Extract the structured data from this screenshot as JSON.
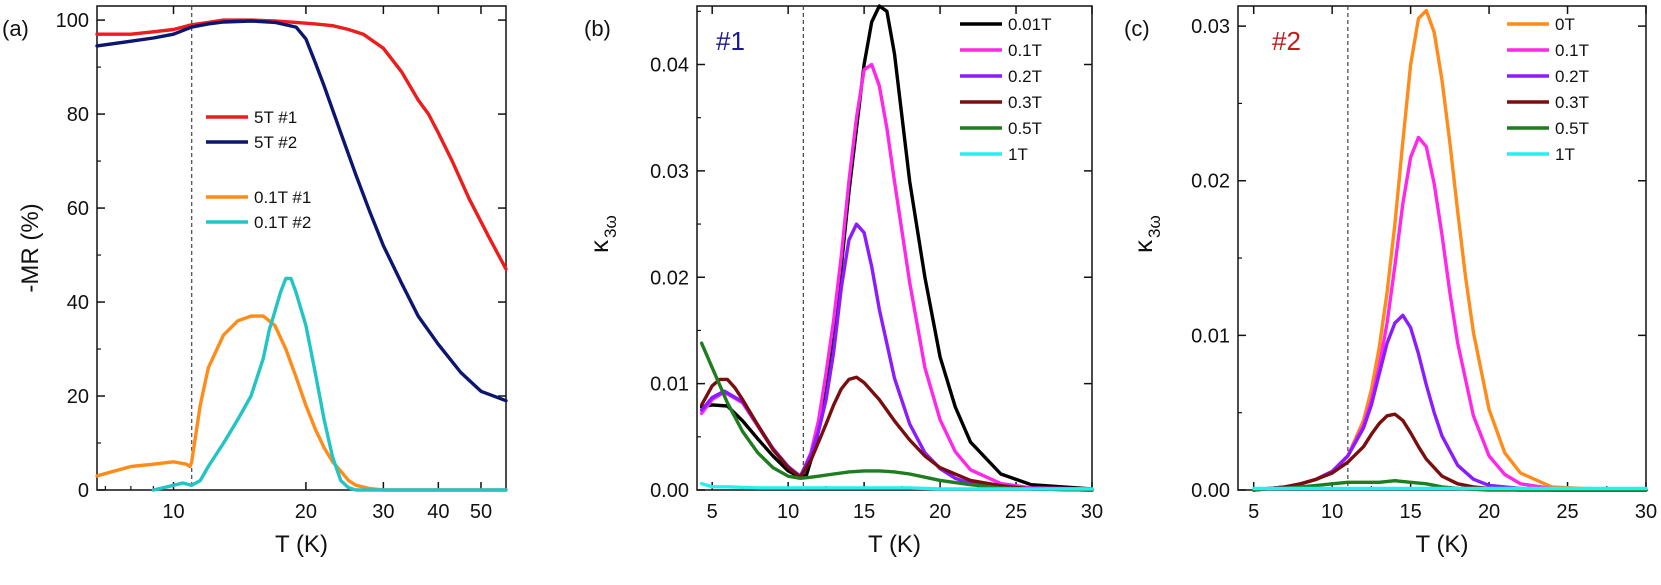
{
  "chart_data": [
    {
      "panel": "(a)",
      "type": "line",
      "xlabel": "T (K)",
      "ylabel": "-MR (%)",
      "xscale": "log",
      "xlim": [
        6.7,
        57
      ],
      "ylim": [
        0,
        103
      ],
      "xticks": [
        "10",
        "20",
        "30",
        "40",
        "50"
      ],
      "yticks": [
        "0",
        "20",
        "40",
        "60",
        "80",
        "100"
      ],
      "vline": 11.0,
      "legend_position": "center-left",
      "series": [
        {
          "name": "5T #1",
          "color": "#ee1c1c",
          "x": [
            6.7,
            8,
            9,
            10,
            11,
            12,
            13,
            15,
            17,
            19,
            21,
            23,
            25,
            27,
            30,
            33,
            36,
            38,
            40,
            43,
            47,
            52,
            57
          ],
          "y": [
            97,
            97,
            97.5,
            98,
            99,
            99.5,
            100,
            100,
            99.8,
            99.5,
            99.2,
            98.8,
            98,
            97,
            94,
            89,
            83,
            80,
            76,
            70,
            62,
            54,
            47
          ]
        },
        {
          "name": "5T #2",
          "color": "#0c1670",
          "x": [
            6.7,
            8,
            9,
            10,
            11,
            12,
            13,
            15,
            17,
            19,
            20,
            21,
            22,
            24,
            26,
            28,
            30,
            33,
            36,
            40,
            45,
            50,
            57
          ],
          "y": [
            94.5,
            95.5,
            96.2,
            97,
            98.5,
            99.2,
            99.6,
            99.8,
            99.5,
            98.5,
            96,
            91,
            86,
            76,
            67,
            59,
            52,
            44,
            37,
            31,
            25,
            21,
            19
          ]
        },
        {
          "name": "0.1T #1",
          "color": "#ff8c1a",
          "x": [
            6.7,
            8,
            9,
            10,
            10.7,
            10.9,
            11.0,
            11.5,
            12,
            13,
            14,
            15,
            16,
            17,
            18,
            19,
            20,
            21,
            22,
            23,
            24,
            25,
            26,
            28,
            30,
            35,
            40,
            57
          ],
          "y": [
            3,
            5,
            5.5,
            6,
            5.5,
            5,
            6,
            18,
            26,
            33,
            36,
            37,
            37,
            35,
            30,
            24,
            18,
            13,
            9,
            6,
            4,
            2,
            1,
            0.3,
            0,
            0,
            0,
            0
          ]
        },
        {
          "name": "0.1T #2",
          "color": "#22c4c4",
          "x": [
            9,
            9.5,
            10,
            10.5,
            11,
            11.5,
            12,
            13,
            14,
            15,
            16,
            16.5,
            17,
            17.5,
            18,
            18.5,
            19,
            20,
            21,
            22,
            23,
            24,
            25,
            26,
            30,
            40,
            57
          ],
          "y": [
            0,
            0.5,
            1,
            1.5,
            1,
            2,
            5,
            10,
            15,
            20,
            28,
            34,
            38,
            42,
            45,
            45,
            42,
            35,
            25,
            15,
            7,
            2,
            0.5,
            0,
            0,
            0,
            0
          ]
        }
      ]
    },
    {
      "panel": "(b)",
      "tag": "#1",
      "tag_color": "#1a1a8f",
      "type": "line",
      "xlabel": "T (K)",
      "ylabel": "κ",
      "ylabel_sub": "3ω",
      "xlim": [
        4,
        30
      ],
      "ylim": [
        0,
        0.0455
      ],
      "xticks": [
        "5",
        "10",
        "15",
        "20",
        "25",
        "30"
      ],
      "yticks": [
        "0.00",
        "0.01",
        "0.02",
        "0.03",
        "0.04"
      ],
      "vline": 11.0,
      "legend_position": "top-right",
      "series": [
        {
          "name": "0.01T",
          "color": "#000000",
          "x": [
            4.3,
            5,
            6,
            7,
            8,
            9,
            10,
            10.8,
            11.2,
            11.8,
            12.5,
            13,
            13.5,
            14,
            14.5,
            15,
            15.5,
            16,
            16.5,
            17,
            17.5,
            18,
            19,
            20,
            21,
            22,
            24,
            26,
            30
          ],
          "y": [
            0.0078,
            0.008,
            0.0079,
            0.0065,
            0.0048,
            0.0032,
            0.0018,
            0.0012,
            0.0014,
            0.0042,
            0.0095,
            0.015,
            0.021,
            0.028,
            0.034,
            0.04,
            0.044,
            0.0455,
            0.045,
            0.041,
            0.035,
            0.029,
            0.02,
            0.0125,
            0.0078,
            0.0045,
            0.0015,
            0.0005,
            0.0001
          ]
        },
        {
          "name": "0.1T",
          "color": "#ff27e8",
          "x": [
            4.3,
            5,
            5.8,
            7,
            8,
            9,
            10,
            10.8,
            11.5,
            12,
            12.5,
            13,
            13.5,
            14,
            14.5,
            15,
            15.5,
            16,
            16.5,
            17,
            18,
            19,
            20,
            21,
            22,
            24,
            26,
            30
          ],
          "y": [
            0.0072,
            0.0085,
            0.0092,
            0.0082,
            0.006,
            0.0038,
            0.0022,
            0.0012,
            0.0035,
            0.0065,
            0.011,
            0.016,
            0.022,
            0.029,
            0.035,
            0.0395,
            0.04,
            0.038,
            0.034,
            0.029,
            0.0195,
            0.0115,
            0.0066,
            0.0036,
            0.0019,
            0.0006,
            0.0002,
            0.0001
          ]
        },
        {
          "name": "0.2T",
          "color": "#8a1cff",
          "x": [
            4.3,
            5,
            5.8,
            7,
            8,
            9,
            10,
            10.8,
            11.5,
            12,
            12.5,
            13,
            13.5,
            14,
            14.5,
            15,
            15.5,
            16,
            17,
            18,
            19,
            20,
            21,
            22,
            24,
            26,
            30
          ],
          "y": [
            0.0075,
            0.0087,
            0.0093,
            0.0083,
            0.0061,
            0.0039,
            0.0022,
            0.0013,
            0.0033,
            0.0055,
            0.0085,
            0.013,
            0.019,
            0.0235,
            0.025,
            0.0242,
            0.021,
            0.017,
            0.0105,
            0.0062,
            0.0035,
            0.002,
            0.0011,
            0.0006,
            0.0002,
            0.0001,
            0.0
          ]
        },
        {
          "name": "0.3T",
          "color": "#7a0e0e",
          "x": [
            4.3,
            5,
            5.5,
            6,
            6.5,
            7,
            8,
            9,
            10,
            10.8,
            11.5,
            12,
            12.5,
            13,
            13.5,
            14,
            14.5,
            15,
            16,
            17,
            18,
            19,
            20,
            22,
            24,
            26,
            30
          ],
          "y": [
            0.008,
            0.0098,
            0.0104,
            0.0104,
            0.0096,
            0.0085,
            0.0061,
            0.0038,
            0.0021,
            0.0012,
            0.0028,
            0.0045,
            0.0062,
            0.008,
            0.0095,
            0.0104,
            0.0106,
            0.0101,
            0.0085,
            0.0065,
            0.0047,
            0.0032,
            0.0021,
            0.0009,
            0.0004,
            0.0001,
            0.0
          ]
        },
        {
          "name": "0.5T",
          "color": "#1e7d1e",
          "x": [
            4.3,
            5,
            6,
            7,
            8,
            9,
            10,
            10.8,
            11.5,
            12,
            13,
            14,
            15,
            16,
            17,
            18,
            19,
            20,
            22,
            24,
            26,
            30
          ],
          "y": [
            0.0138,
            0.0115,
            0.0082,
            0.0055,
            0.0035,
            0.0021,
            0.0013,
            0.0011,
            0.0012,
            0.0013,
            0.0015,
            0.0017,
            0.0018,
            0.0018,
            0.0017,
            0.0015,
            0.0012,
            0.0009,
            0.0005,
            0.0002,
            0.0001,
            0.0
          ]
        },
        {
          "name": "1T",
          "color": "#25f0f0",
          "x": [
            4.3,
            5,
            6,
            8,
            10,
            12,
            14,
            16,
            18,
            20,
            22,
            24,
            26,
            28,
            30
          ],
          "y": [
            0.0006,
            0.0003,
            0.0003,
            0.0002,
            0.0002,
            0.0002,
            0.0002,
            0.0002,
            0.0002,
            0.0001,
            0.0001,
            0.0001,
            0.0001,
            0.0001,
            0.0001
          ]
        }
      ]
    },
    {
      "panel": "(c)",
      "tag": "#2",
      "tag_color": "#c41a1a",
      "type": "line",
      "xlabel": "T (K)",
      "ylabel": "κ",
      "ylabel_sub": "3ω",
      "xlim": [
        4,
        30
      ],
      "ylim": [
        0,
        0.0313
      ],
      "xticks": [
        "5",
        "10",
        "15",
        "20",
        "25",
        "30"
      ],
      "yticks": [
        "0.00",
        "0.01",
        "0.02",
        "0.03"
      ],
      "vline": 11.0,
      "legend_position": "top-right",
      "series": [
        {
          "name": "0T",
          "color": "#ff8c1a",
          "x": [
            5,
            6,
            7,
            8,
            9,
            10,
            11,
            12,
            12.5,
            13,
            13.5,
            14,
            14.5,
            15,
            15.5,
            16,
            16.5,
            17,
            17.5,
            18,
            18.5,
            19,
            20,
            21,
            22,
            24,
            26,
            30
          ],
          "y": [
            0,
            0.0001,
            0.0002,
            0.0004,
            0.0007,
            0.0012,
            0.0022,
            0.0045,
            0.0065,
            0.0092,
            0.0128,
            0.0172,
            0.0225,
            0.0275,
            0.0305,
            0.031,
            0.0296,
            0.0265,
            0.0225,
            0.018,
            0.0138,
            0.0102,
            0.0052,
            0.0024,
            0.0011,
            0.0002,
            0.0001,
            0.0
          ]
        },
        {
          "name": "0.1T",
          "color": "#ff27e8",
          "x": [
            5,
            6,
            7,
            8,
            9,
            10,
            11,
            12,
            12.5,
            13,
            13.5,
            14,
            14.5,
            15,
            15.5,
            16,
            16.5,
            17,
            17.5,
            18,
            19,
            20,
            21,
            22,
            24,
            30
          ],
          "y": [
            0,
            0.0001,
            0.0002,
            0.0004,
            0.0007,
            0.0012,
            0.0022,
            0.0042,
            0.0058,
            0.008,
            0.0108,
            0.0145,
            0.0185,
            0.0215,
            0.0228,
            0.0222,
            0.0198,
            0.0165,
            0.0128,
            0.0095,
            0.0048,
            0.0022,
            0.001,
            0.0004,
            0.0001,
            0.0
          ]
        },
        {
          "name": "0.2T",
          "color": "#8a1cff",
          "x": [
            5,
            6,
            7,
            8,
            9,
            10,
            11,
            12,
            12.5,
            13,
            13.5,
            14,
            14.5,
            15,
            15.5,
            16,
            16.5,
            17,
            18,
            19,
            20,
            22,
            24,
            30
          ],
          "y": [
            0,
            0.0001,
            0.0002,
            0.0004,
            0.0007,
            0.0012,
            0.0022,
            0.004,
            0.0055,
            0.0075,
            0.0095,
            0.0108,
            0.0113,
            0.0105,
            0.0088,
            0.0068,
            0.005,
            0.0035,
            0.0016,
            0.0007,
            0.0003,
            0.0001,
            0.0,
            0.0
          ]
        },
        {
          "name": "0.3T",
          "color": "#7a0e0e",
          "x": [
            5,
            6,
            7,
            8,
            9,
            10,
            11,
            12,
            12.5,
            13,
            13.5,
            14,
            14.5,
            15,
            15.5,
            16,
            17,
            18,
            19,
            20,
            22,
            30
          ],
          "y": [
            0,
            0.0001,
            0.0002,
            0.0004,
            0.0007,
            0.0011,
            0.0018,
            0.0028,
            0.0036,
            0.0043,
            0.0048,
            0.0049,
            0.0045,
            0.0037,
            0.0028,
            0.002,
            0.0009,
            0.0004,
            0.0002,
            0.0001,
            0.0,
            0.0
          ]
        },
        {
          "name": "0.5T",
          "color": "#1e7d1e",
          "x": [
            5,
            6,
            7,
            8,
            9,
            10,
            11,
            12,
            13,
            14,
            15,
            16,
            17,
            18,
            20,
            24,
            30
          ],
          "y": [
            0,
            0.0001,
            0.0001,
            0.0002,
            0.0003,
            0.0004,
            0.0005,
            0.0005,
            0.0005,
            0.0006,
            0.0005,
            0.0004,
            0.0002,
            0.0001,
            0.0,
            0.0,
            0.0
          ]
        },
        {
          "name": "1T",
          "color": "#25f0f0",
          "x": [
            5,
            8,
            10,
            12,
            14,
            16,
            18,
            20,
            22,
            24,
            26,
            28,
            30
          ],
          "y": [
            0.0001,
            0.0001,
            0.0001,
            0.0001,
            0.0001,
            0.0001,
            0.0001,
            0.0001,
            0.0001,
            0.0001,
            0.0001,
            0.0001,
            0.0001
          ]
        }
      ]
    }
  ]
}
